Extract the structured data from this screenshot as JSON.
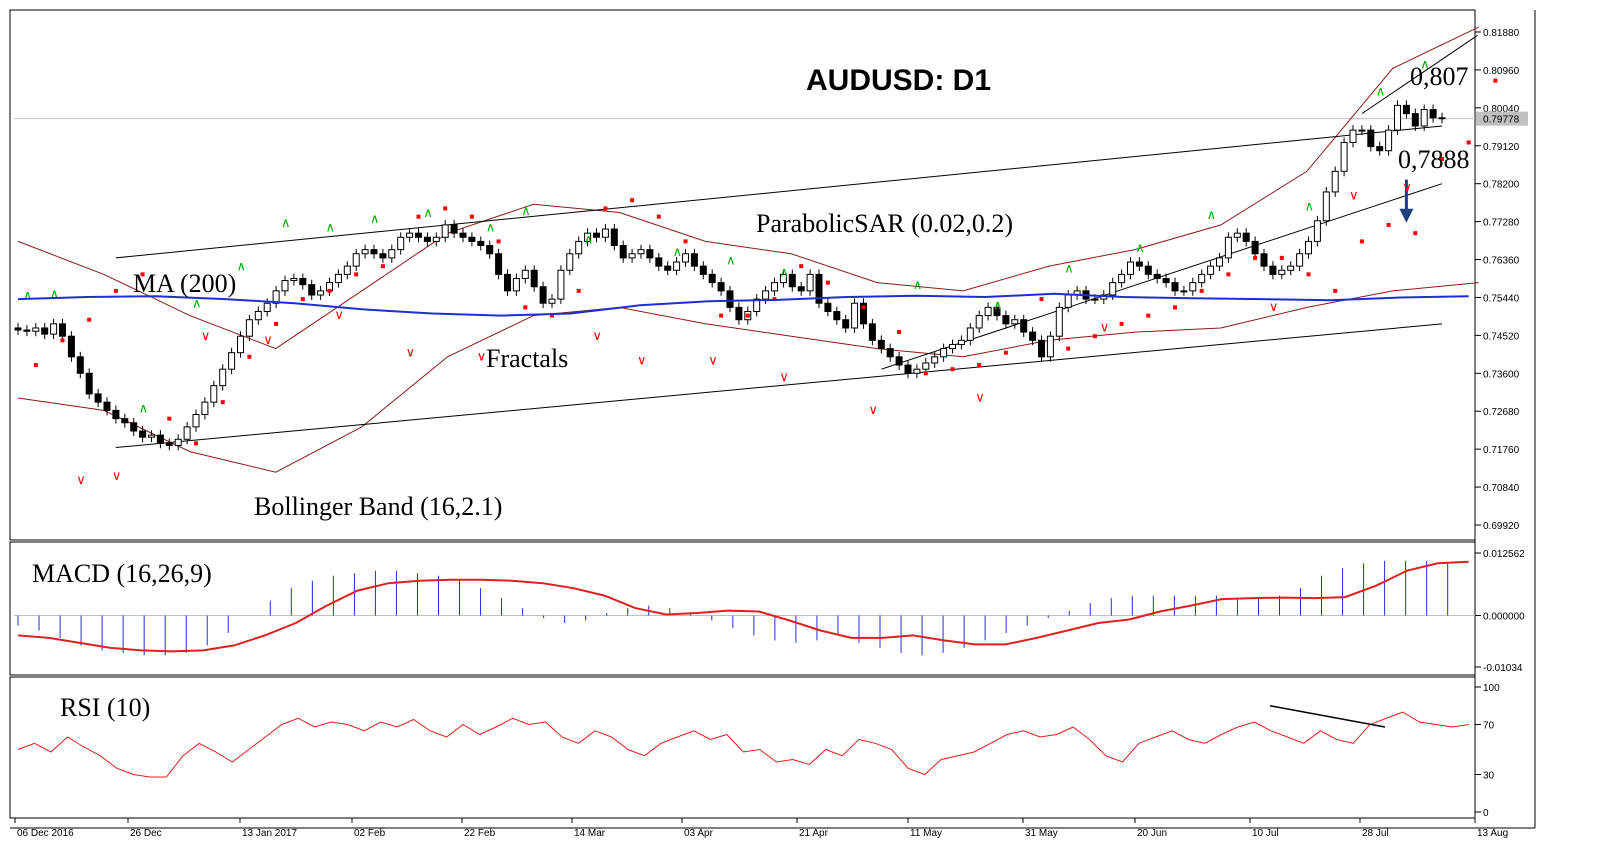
{
  "chart_data": [
    {
      "type": "candlestick",
      "title": "AUDUSD: D1",
      "symbol": "AUDUSD",
      "timeframe": "D1",
      "ylim": [
        0.6992,
        0.8188
      ],
      "y_ticks": [
        "0.81880",
        "0.80960",
        "0.80040",
        "0.79120",
        "0.78200",
        "0.77280",
        "0.76360",
        "0.75440",
        "0.74520",
        "0.73600",
        "0.72680",
        "0.71760",
        "0.70840",
        "0.69920"
      ],
      "current_price_label": "0.79778",
      "x_ticks": [
        "06 Dec 2016",
        "26 Dec",
        "13 Jan 2017",
        "02 Feb",
        "22 Feb",
        "14 Mar",
        "03 Apr",
        "21 Apr",
        "11 May",
        "31 May",
        "20 Jun",
        "10 Jul",
        "28 Jul",
        "13 Aug"
      ],
      "annotations": {
        "level_high": "0,807",
        "level_low": "0,7888",
        "ma_label": "MA (200)",
        "sar_label": "ParabolicSAR (0.02,0.2)",
        "fractals_label": "Fractals",
        "bollinger_label": "Bollinger Band (16,2.1)"
      },
      "colors": {
        "bull_candle": "#ffffff",
        "bear_candle": "#000000",
        "ma": "#1f2fcf",
        "bollinger": "#8b1a1a",
        "sar": "#ff0000",
        "fractal_up": "#00b000",
        "fractal_down": "#ff0000",
        "trendline": "#000000",
        "arrow": "#1f3f7f"
      },
      "closes": [
        0.7465,
        0.7462,
        0.747,
        0.7455,
        0.748,
        0.745,
        0.74,
        0.736,
        0.731,
        0.729,
        0.727,
        0.725,
        0.724,
        0.722,
        0.7205,
        0.721,
        0.719,
        0.7185,
        0.72,
        0.723,
        0.726,
        0.729,
        0.733,
        0.737,
        0.741,
        0.745,
        0.749,
        0.751,
        0.753,
        0.756,
        0.7585,
        0.759,
        0.7575,
        0.755,
        0.756,
        0.758,
        0.76,
        0.762,
        0.765,
        0.766,
        0.765,
        0.764,
        0.766,
        0.769,
        0.77,
        0.769,
        0.768,
        0.769,
        0.772,
        0.77,
        0.769,
        0.768,
        0.767,
        0.765,
        0.76,
        0.756,
        0.759,
        0.761,
        0.757,
        0.753,
        0.754,
        0.761,
        0.765,
        0.768,
        0.77,
        0.769,
        0.771,
        0.767,
        0.764,
        0.765,
        0.766,
        0.764,
        0.762,
        0.761,
        0.763,
        0.765,
        0.762,
        0.76,
        0.758,
        0.756,
        0.752,
        0.749,
        0.751,
        0.754,
        0.756,
        0.758,
        0.76,
        0.757,
        0.756,
        0.76,
        0.753,
        0.751,
        0.749,
        0.747,
        0.753,
        0.748,
        0.744,
        0.742,
        0.74,
        0.738,
        0.736,
        0.737,
        0.7385,
        0.74,
        0.742,
        0.743,
        0.744,
        0.747,
        0.75,
        0.752,
        0.75,
        0.748,
        0.749,
        0.746,
        0.744,
        0.74,
        0.745,
        0.752,
        0.755,
        0.756,
        0.754,
        0.754,
        0.755,
        0.758,
        0.76,
        0.763,
        0.762,
        0.76,
        0.759,
        0.758,
        0.756,
        0.756,
        0.758,
        0.76,
        0.762,
        0.764,
        0.769,
        0.77,
        0.768,
        0.765,
        0.762,
        0.76,
        0.761,
        0.762,
        0.765,
        0.768,
        0.773,
        0.78,
        0.785,
        0.792,
        0.795,
        0.795,
        0.791,
        0.79,
        0.795,
        0.801,
        0.799,
        0.796,
        0.8,
        0.798,
        0.7978
      ],
      "overlay_series": [
        {
          "name": "MA (200)",
          "values": [
            0.754,
            0.7545,
            0.7547,
            0.754,
            0.753,
            0.7515,
            0.7505,
            0.75,
            0.7505,
            0.7525,
            0.7535,
            0.7538,
            0.7545,
            0.7548,
            0.7545,
            0.7553,
            0.7545,
            0.7542,
            0.754,
            0.7537,
            0.7544,
            0.7547
          ]
        },
        {
          "name": "Bollinger upper",
          "values": [
            0.768,
            0.76,
            0.75,
            0.742,
            0.756,
            0.77,
            0.777,
            0.775,
            0.768,
            0.765,
            0.758,
            0.756,
            0.762,
            0.766,
            0.772,
            0.785,
            0.81,
            0.82
          ]
        },
        {
          "name": "Bollinger lower",
          "values": [
            0.73,
            0.727,
            0.717,
            0.712,
            0.723,
            0.74,
            0.75,
            0.752,
            0.748,
            0.745,
            0.742,
            0.74,
            0.744,
            0.746,
            0.747,
            0.752,
            0.756,
            0.758
          ]
        }
      ],
      "sar_points": [
        [
          2,
          0.738
        ],
        [
          5,
          0.744
        ],
        [
          8,
          0.749
        ],
        [
          11,
          0.756
        ],
        [
          14,
          0.76
        ],
        [
          17,
          0.725
        ],
        [
          20,
          0.719
        ],
        [
          23,
          0.729
        ],
        [
          26,
          0.74
        ],
        [
          29,
          0.748
        ],
        [
          32,
          0.754
        ],
        [
          35,
          0.756
        ],
        [
          38,
          0.76
        ],
        [
          41,
          0.762
        ],
        [
          45,
          0.774
        ],
        [
          48,
          0.776
        ],
        [
          51,
          0.774
        ],
        [
          54,
          0.768
        ],
        [
          57,
          0.752
        ],
        [
          60,
          0.75
        ],
        [
          63,
          0.756
        ],
        [
          66,
          0.776
        ],
        [
          69,
          0.778
        ],
        [
          72,
          0.774
        ],
        [
          75,
          0.768
        ],
        [
          79,
          0.75
        ],
        [
          82,
          0.75
        ],
        [
          85,
          0.754
        ],
        [
          88,
          0.762
        ],
        [
          91,
          0.758
        ],
        [
          95,
          0.752
        ],
        [
          99,
          0.746
        ],
        [
          102,
          0.736
        ],
        [
          105,
          0.737
        ],
        [
          108,
          0.738
        ],
        [
          111,
          0.741
        ],
        [
          115,
          0.754
        ],
        [
          118,
          0.742
        ],
        [
          121,
          0.745
        ],
        [
          124,
          0.748
        ],
        [
          127,
          0.75
        ],
        [
          130,
          0.752
        ],
        [
          133,
          0.756
        ],
        [
          136,
          0.76
        ],
        [
          139,
          0.764
        ],
        [
          142,
          0.764
        ],
        [
          145,
          0.76
        ],
        [
          148,
          0.756
        ],
        [
          151,
          0.768
        ],
        [
          154,
          0.772
        ],
        [
          157,
          0.77
        ],
        [
          160,
          0.788
        ],
        [
          163,
          0.792
        ],
        [
          166,
          0.807
        ]
      ],
      "fractals_up": [
        [
          1,
          0.7525
        ],
        [
          4,
          0.7528
        ],
        [
          14,
          0.725
        ],
        [
          20,
          0.7505
        ],
        [
          25,
          0.7595
        ],
        [
          30,
          0.77
        ],
        [
          35,
          0.769
        ],
        [
          40,
          0.771
        ],
        [
          46,
          0.7725
        ],
        [
          53,
          0.769
        ],
        [
          57,
          0.773
        ],
        [
          64,
          0.766
        ],
        [
          74,
          0.763
        ],
        [
          80,
          0.761
        ],
        [
          86,
          0.758
        ],
        [
          101,
          0.755
        ],
        [
          110,
          0.75
        ],
        [
          118,
          0.759
        ],
        [
          126,
          0.764
        ],
        [
          134,
          0.772
        ],
        [
          145,
          0.774
        ],
        [
          153,
          0.802
        ],
        [
          158,
          0.8085
        ]
      ],
      "fractals_down": [
        [
          7,
          0.713
        ],
        [
          11,
          0.714
        ],
        [
          21,
          0.748
        ],
        [
          28,
          0.747
        ],
        [
          36,
          0.753
        ],
        [
          44,
          0.744
        ],
        [
          52,
          0.743
        ],
        [
          65,
          0.748
        ],
        [
          70,
          0.742
        ],
        [
          78,
          0.742
        ],
        [
          86,
          0.738
        ],
        [
          96,
          0.73
        ],
        [
          108,
          0.733
        ],
        [
          122,
          0.75
        ],
        [
          141,
          0.755
        ],
        [
          150,
          0.782
        ],
        [
          156,
          0.784
        ]
      ],
      "trendlines": [
        {
          "points": [
            [
              11,
              0.764
            ],
            [
              160,
              0.796
            ]
          ]
        },
        {
          "points": [
            [
              11,
              0.718
            ],
            [
              160,
              0.748
            ]
          ]
        },
        {
          "points": [
            [
              97,
              0.737
            ],
            [
              160,
              0.782
            ]
          ]
        },
        {
          "points": [
            [
              151,
              0.799
            ],
            [
              164,
              0.818
            ]
          ]
        }
      ],
      "arrow": {
        "from": [
          156,
          0.783
        ],
        "to": [
          156,
          0.7735
        ]
      }
    },
    {
      "type": "bar",
      "label": "MACD (16,26,9)",
      "ylim": [
        -0.01034,
        0.012562
      ],
      "y_ticks": [
        "0.012562",
        "0.000000",
        "-0.01034"
      ],
      "histogram": [
        -0.002,
        -0.003,
        -0.0045,
        -0.006,
        -0.007,
        -0.0075,
        -0.008,
        -0.008,
        -0.0075,
        -0.006,
        -0.0035,
        0.0,
        0.003,
        0.0055,
        0.007,
        0.008,
        0.0085,
        0.009,
        0.009,
        0.0085,
        0.008,
        0.007,
        0.0055,
        0.0035,
        0.0015,
        -0.0005,
        -0.0015,
        -0.001,
        0.0005,
        0.0015,
        0.002,
        0.0015,
        0.0005,
        -0.001,
        -0.0025,
        -0.004,
        -0.005,
        -0.0055,
        -0.005,
        -0.004,
        -0.0055,
        -0.0065,
        -0.0075,
        -0.008,
        -0.0075,
        -0.0065,
        -0.005,
        -0.0035,
        -0.002,
        -0.0005,
        0.001,
        0.0025,
        0.0035,
        0.004,
        0.004,
        0.004,
        0.004,
        0.004,
        0.0035,
        0.0035,
        0.004,
        0.0055,
        0.008,
        0.0095,
        0.0105,
        0.011,
        0.011,
        0.011,
        0.0105
      ],
      "signal": [
        -0.004,
        -0.0045,
        -0.0055,
        -0.0065,
        -0.007,
        -0.0072,
        -0.007,
        -0.006,
        -0.004,
        -0.0015,
        0.002,
        0.005,
        0.0065,
        0.007,
        0.0072,
        0.0072,
        0.007,
        0.0065,
        0.0055,
        0.004,
        0.0015,
        0.0002,
        0.0005,
        0.001,
        0.0008,
        -0.001,
        -0.003,
        -0.0045,
        -0.0045,
        -0.004,
        -0.005,
        -0.0058,
        -0.0058,
        -0.0045,
        -0.003,
        -0.0015,
        -0.0008,
        0.0008,
        0.002,
        0.0033,
        0.0035,
        0.0036,
        0.0035,
        0.0037,
        0.006,
        0.009,
        0.0105,
        0.0108
      ]
    },
    {
      "type": "line",
      "label": "RSI (10)",
      "ylim": [
        0,
        100
      ],
      "y_ticks": [
        "100",
        "70",
        "30",
        "0"
      ],
      "values": [
        50,
        55,
        48,
        60,
        52,
        45,
        35,
        30,
        28,
        28,
        45,
        55,
        48,
        40,
        50,
        60,
        70,
        75,
        68,
        72,
        70,
        65,
        72,
        68,
        74,
        65,
        60,
        70,
        62,
        68,
        75,
        70,
        72,
        60,
        55,
        65,
        60,
        50,
        45,
        55,
        60,
        65,
        58,
        62,
        48,
        50,
        40,
        42,
        38,
        50,
        45,
        58,
        55,
        50,
        35,
        30,
        42,
        45,
        48,
        55,
        62,
        65,
        60,
        62,
        68,
        58,
        45,
        40,
        55,
        60,
        65,
        58,
        55,
        62,
        68,
        72,
        65,
        60,
        55,
        65,
        58,
        55,
        70,
        75,
        80,
        72,
        70,
        68,
        70
      ]
    }
  ]
}
